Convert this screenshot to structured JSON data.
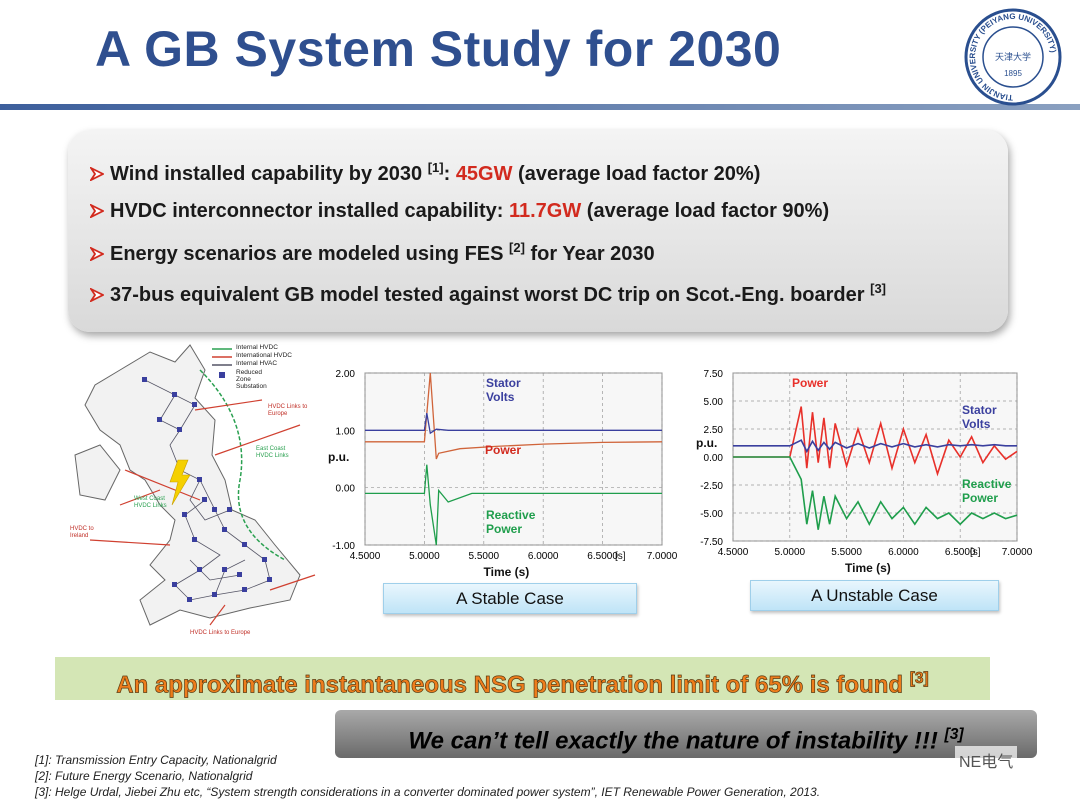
{
  "title": "A GB System Study for 2030",
  "logo": {
    "name": "TIANJIN UNIVERSITY (PEIYANG UNIVERSITY)",
    "year": "1895",
    "motto": "天津大学"
  },
  "bullets": [
    [
      {
        "t": "Wind installed capability by 2030 "
      },
      {
        "t": "[1]",
        "kind": "sup"
      },
      {
        "t": ":  "
      },
      {
        "t": "45GW",
        "kind": "red"
      },
      {
        "t": " (average load factor 20%)"
      }
    ],
    [
      {
        "t": "HVDC interconnector installed capability: "
      },
      {
        "t": "11.7GW",
        "kind": "red"
      },
      {
        "t": " (average load factor 90%)"
      }
    ],
    [
      {
        "t": "Energy scenarios are modeled using FES "
      },
      {
        "t": "[2]",
        "kind": "sup"
      },
      {
        "t": "  for Year 2030"
      }
    ],
    [
      {
        "t": "37-bus equivalent GB model tested against worst DC trip on Scot.-Eng. boarder "
      },
      {
        "t": "[3]",
        "kind": "sup"
      }
    ]
  ],
  "map": {
    "legend": [
      "Internal HVDC",
      "International HVDC",
      "Internal HVAC",
      "Reduced Zone Substation"
    ],
    "labels": [
      "HVDC Links to Europe",
      "East Coast HVDC Links",
      "West Coast HVDC Links",
      "HVDC to Ireland",
      "HVDC Links to Europe"
    ]
  },
  "plots": [
    {
      "caption": "A Stable Case",
      "xlabel": "Time (s)",
      "ylabel": "p.u.",
      "x_unit": "[s]",
      "grid": true,
      "xlim": [
        4.5,
        7.0
      ],
      "ylim": [
        -1.0,
        2.0
      ],
      "xticks": [
        {
          "value": 4.5,
          "label": "4.5000"
        },
        {
          "value": 5.0,
          "label": "5.0000"
        },
        {
          "value": 5.5,
          "label": "5.5000"
        },
        {
          "value": 6.0,
          "label": "6.0000"
        },
        {
          "value": 6.5,
          "label": "6.5000"
        },
        {
          "value": 7.0,
          "label": "7.0000"
        }
      ],
      "yticks": [
        {
          "value": 2.0,
          "label": "2.00"
        },
        {
          "value": 1.0,
          "label": "1.00"
        },
        {
          "value": 0.0,
          "label": "0.00"
        },
        {
          "value": -1.0,
          "label": "-1.00"
        }
      ],
      "series": [
        {
          "name": "Power",
          "color": "#d0643a",
          "x": [
            4.5,
            5.0,
            5.05,
            5.1,
            5.12,
            5.3,
            5.6,
            6.0,
            6.5,
            7.0
          ],
          "values": [
            0.8,
            0.8,
            2.0,
            0.5,
            0.6,
            0.68,
            0.72,
            0.76,
            0.79,
            0.8
          ]
        },
        {
          "name": "Stator Volts",
          "color": "#3a3f9e",
          "x": [
            4.5,
            5.0,
            5.02,
            5.05,
            5.1,
            5.2,
            5.5,
            6.0,
            7.0
          ],
          "values": [
            1.0,
            1.0,
            1.3,
            0.95,
            1.02,
            1.0,
            1.0,
            1.0,
            1.0
          ]
        },
        {
          "name": "Reactive Power",
          "color": "#1f9e4c",
          "x": [
            4.5,
            5.0,
            5.02,
            5.05,
            5.1,
            5.12,
            5.2,
            5.4,
            6.0,
            7.0
          ],
          "values": [
            -0.1,
            -0.1,
            0.4,
            -0.3,
            -1.0,
            -0.05,
            -0.25,
            -0.1,
            -0.1,
            -0.1
          ]
        }
      ]
    },
    {
      "caption": "A Unstable Case",
      "xlabel": "Time (s)",
      "ylabel": "p.u.",
      "x_unit": "[s]",
      "grid": true,
      "xlim": [
        4.5,
        7.0
      ],
      "ylim": [
        -7.5,
        7.5
      ],
      "xticks": [
        {
          "value": 4.5,
          "label": "4.5000"
        },
        {
          "value": 5.0,
          "label": "5.0000"
        },
        {
          "value": 5.5,
          "label": "5.5000"
        },
        {
          "value": 6.0,
          "label": "6.0000"
        },
        {
          "value": 6.5,
          "label": "6.5000"
        },
        {
          "value": 7.0,
          "label": "7.0000"
        }
      ],
      "yticks": [
        {
          "value": 7.5,
          "label": "7.50"
        },
        {
          "value": 5.0,
          "label": "5.00"
        },
        {
          "value": 2.5,
          "label": "2.50"
        },
        {
          "value": 0.0,
          "label": "0.00"
        },
        {
          "value": -2.5,
          "label": "-2.50"
        },
        {
          "value": -5.0,
          "label": "-5.00"
        },
        {
          "value": -7.5,
          "label": "-7.50"
        }
      ],
      "series": [
        {
          "name": "Power",
          "color": "#e8302a",
          "x": [
            4.5,
            5.0,
            5.1,
            5.15,
            5.2,
            5.25,
            5.3,
            5.35,
            5.4,
            5.5,
            5.6,
            5.7,
            5.8,
            5.9,
            6.0,
            6.1,
            6.2,
            6.3,
            6.4,
            6.5,
            6.6,
            6.7,
            6.8,
            6.9,
            7.0
          ],
          "values": [
            0,
            0,
            4.5,
            -1,
            4,
            -0.5,
            3.5,
            -1,
            3,
            -0.8,
            2.5,
            -0.5,
            3,
            -1,
            2.5,
            -0.5,
            2,
            -1.5,
            1.5,
            0,
            1.8,
            -0.5,
            1,
            -0.2,
            0.5
          ]
        },
        {
          "name": "Stator Volts",
          "color": "#3a3f9e",
          "x": [
            4.5,
            5.0,
            5.1,
            5.15,
            5.2,
            5.25,
            5.3,
            5.35,
            5.4,
            5.5,
            5.6,
            5.7,
            5.8,
            5.9,
            6.0,
            6.1,
            6.2,
            6.3,
            6.4,
            6.5,
            6.6,
            6.7,
            6.8,
            6.9,
            7.0
          ],
          "values": [
            1,
            1,
            1.5,
            0.5,
            1.4,
            0.6,
            1.3,
            0.7,
            1.3,
            0.8,
            1.2,
            0.8,
            1.2,
            0.9,
            1.2,
            0.9,
            1.1,
            0.9,
            1.1,
            1,
            1.1,
            1,
            1.1,
            1,
            1
          ]
        },
        {
          "name": "Reactive Power",
          "color": "#1f9e4c",
          "x": [
            4.5,
            5.0,
            5.1,
            5.15,
            5.2,
            5.25,
            5.3,
            5.35,
            5.4,
            5.5,
            5.6,
            5.7,
            5.8,
            5.9,
            6.0,
            6.1,
            6.2,
            6.3,
            6.4,
            6.5,
            6.6,
            6.7,
            6.8,
            6.9,
            7.0
          ],
          "values": [
            0,
            0,
            -2,
            -6,
            -3,
            -6.5,
            -3.5,
            -6,
            -3.5,
            -5.5,
            -4,
            -6,
            -4,
            -5.5,
            -4.5,
            -6,
            -4.5,
            -5.5,
            -5,
            -6,
            -5,
            -5.5,
            -5,
            -5.5,
            -5.2
          ]
        }
      ]
    }
  ],
  "finding": [
    {
      "t": "An approximate instantaneous NSG penetration limit of 65% is found "
    },
    {
      "t": "[3]",
      "kind": "sup"
    }
  ],
  "remark": [
    {
      "t": "We can’t tell exactly the nature of instability !!! "
    },
    {
      "t": "[3]",
      "kind": "sup"
    }
  ],
  "footnotes": [
    "[1]: Transmission Entry Capacity, Nationalgrid",
    "[2]: Future Energy Scenario, Nationalgrid",
    "[3]: Helge Urdal, Jiebei Zhu etc, “System strength considerations in a converter dominated power system”, IET Renewable Power Generation, 2013."
  ],
  "badge": "NE电气"
}
